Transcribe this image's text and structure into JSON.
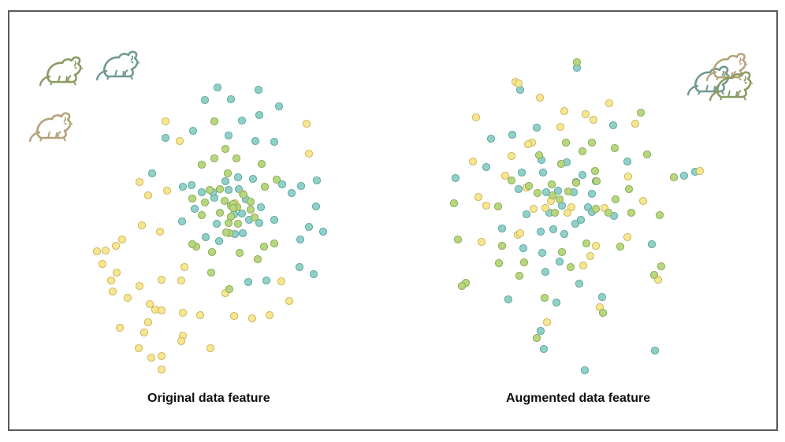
{
  "colors": {
    "teal": "#8fd0c8",
    "yellow": "#f7e690",
    "green": "#b7d77e",
    "teal_stroke": "#5aa39a",
    "yellow_stroke": "#c9b25a",
    "green_stroke": "#88a653",
    "mouse_green": "#8b9b63",
    "mouse_teal": "#6f9a91",
    "mouse_tan": "#b3a27a"
  },
  "icons": [
    "mouse-icon-green",
    "mouse-icon-teal",
    "mouse-icon-tan"
  ],
  "chart_data": [
    {
      "type": "scatter",
      "title": "Original data feature",
      "grid": false,
      "series": [
        {
          "color": "teal",
          "points": [
            [
              276,
              111
            ],
            [
              328,
              114
            ],
            [
              260,
              127
            ],
            [
              293,
              126
            ],
            [
              354,
              135
            ],
            [
              307,
              153
            ],
            [
              329,
              146
            ],
            [
              245,
              166
            ],
            [
              290,
              172
            ],
            [
              324,
              179
            ],
            [
              348,
              180
            ],
            [
              210,
              175
            ],
            [
              193,
              220
            ],
            [
              243,
              235
            ],
            [
              302,
              225
            ],
            [
              321,
              227
            ],
            [
              358,
              234
            ],
            [
              382,
              236
            ],
            [
              402,
              229
            ],
            [
              286,
              230
            ],
            [
              256,
              244
            ],
            [
              272,
              251
            ],
            [
              312,
              253
            ],
            [
              331,
              263
            ],
            [
              370,
              245
            ],
            [
              401,
              262
            ],
            [
              232,
              237
            ],
            [
              290,
              241
            ],
            [
              303,
              240
            ],
            [
              270,
              244
            ],
            [
              247,
              265
            ],
            [
              231,
              281
            ],
            [
              275,
              284
            ],
            [
              297,
              272
            ],
            [
              316,
              279
            ],
            [
              329,
              283
            ],
            [
              348,
              279
            ],
            [
              410,
              294
            ],
            [
              392,
              288
            ],
            [
              381,
              304
            ],
            [
              308,
              296
            ],
            [
              298,
              297
            ],
            [
              278,
              306
            ],
            [
              261,
              301
            ],
            [
              315,
              358
            ],
            [
              380,
              339
            ],
            [
              398,
              348
            ],
            [
              338,
              356
            ],
            [
              307,
              271
            ]
          ]
        },
        {
          "color": "yellow",
          "points": [
            [
              210,
              154
            ],
            [
              228,
              179
            ],
            [
              389,
              157
            ],
            [
              392,
              195
            ],
            [
              177,
              231
            ],
            [
              212,
              242
            ],
            [
              188,
              248
            ],
            [
              180,
              286
            ],
            [
              203,
              294
            ],
            [
              155,
              304
            ],
            [
              147,
              312
            ],
            [
              123,
              319
            ],
            [
              134,
              318
            ],
            [
              130,
              335
            ],
            [
              148,
              346
            ],
            [
              141,
              356
            ],
            [
              143,
              370
            ],
            [
              177,
              363
            ],
            [
              162,
              378
            ],
            [
              205,
              355
            ],
            [
              230,
              356
            ],
            [
              234,
              339
            ],
            [
              190,
              386
            ],
            [
              197,
              393
            ],
            [
              205,
              394
            ],
            [
              232,
              397
            ],
            [
              254,
              400
            ],
            [
              297,
              401
            ],
            [
              320,
              404
            ],
            [
              342,
              400
            ],
            [
              357,
              357
            ],
            [
              367,
              382
            ],
            [
              188,
              409
            ],
            [
              152,
              416
            ],
            [
              232,
              426
            ],
            [
              183,
              422
            ],
            [
              230,
              433
            ],
            [
              176,
              442
            ],
            [
              192,
              454
            ],
            [
              205,
              452
            ],
            [
              205,
              469
            ],
            [
              267,
              442
            ],
            [
              298,
              258
            ],
            [
              286,
              372
            ],
            [
              308,
              246
            ]
          ]
        },
        {
          "color": "green",
          "points": [
            [
              272,
              154
            ],
            [
              256,
              209
            ],
            [
              272,
              201
            ],
            [
              300,
              201
            ],
            [
              286,
              189
            ],
            [
              332,
              208
            ],
            [
              351,
              228
            ],
            [
              336,
              237
            ],
            [
              309,
              247
            ],
            [
              279,
              240
            ],
            [
              293,
              261
            ],
            [
              301,
              263
            ],
            [
              318,
              256
            ],
            [
              285,
              255
            ],
            [
              260,
              257
            ],
            [
              244,
              252
            ],
            [
              266,
              241
            ],
            [
              289,
              220
            ],
            [
              256,
              273
            ],
            [
              279,
              270
            ],
            [
              296,
              259
            ],
            [
              323,
              276
            ],
            [
              302,
              284
            ],
            [
              291,
              296
            ],
            [
              304,
              321
            ],
            [
              269,
              320
            ],
            [
              327,
              329
            ],
            [
              335,
              313
            ],
            [
              348,
              309
            ],
            [
              318,
              266
            ],
            [
              296,
              264
            ],
            [
              287,
              295
            ],
            [
              291,
              367
            ],
            [
              268,
              346
            ],
            [
              249,
              313
            ],
            [
              244,
              310
            ],
            [
              293,
              275
            ],
            [
              290,
              283
            ]
          ]
        }
      ]
    },
    {
      "type": "scatter",
      "title": "Augmented data feature",
      "grid": false,
      "series": [
        {
          "color": "teal",
          "points": [
            [
              732,
              86
            ],
            [
              660,
              114
            ],
            [
              681,
              162
            ],
            [
              623,
              176
            ],
            [
              650,
              171
            ],
            [
              578,
              226
            ],
            [
              617,
              212
            ],
            [
              662,
              219
            ],
            [
              687,
              203
            ],
            [
              689,
              219
            ],
            [
              693,
              244
            ],
            [
              708,
              242
            ],
            [
              719,
              206
            ],
            [
              728,
              244
            ],
            [
              731,
              231
            ],
            [
              739,
              222
            ],
            [
              746,
              263
            ],
            [
              756,
              230
            ],
            [
              751,
              246
            ],
            [
              779,
              274
            ],
            [
              796,
              205
            ],
            [
              778,
              159
            ],
            [
              668,
              272
            ],
            [
              697,
              270
            ],
            [
              713,
              261
            ],
            [
              637,
              290
            ],
            [
              686,
              294
            ],
            [
              702,
              291
            ],
            [
              716,
              297
            ],
            [
              730,
              284
            ],
            [
              737,
              279
            ],
            [
              751,
              269
            ],
            [
              664,
              315
            ],
            [
              688,
              321
            ],
            [
              710,
              332
            ],
            [
              692,
              345
            ],
            [
              735,
              360
            ],
            [
              827,
              310
            ],
            [
              690,
              443
            ],
            [
              686,
              420
            ],
            [
              706,
              384
            ],
            [
              764,
              377
            ],
            [
              645,
              380
            ],
            [
              831,
              445
            ],
            [
              742,
              470
            ],
            [
              868,
              223
            ],
            [
              882,
              218
            ],
            [
              658,
              240
            ]
          ]
        },
        {
          "color": "yellow",
          "points": [
            [
              654,
              104
            ],
            [
              658,
              106
            ],
            [
              685,
              124
            ],
            [
              716,
              141
            ],
            [
              773,
              131
            ],
            [
              743,
              145
            ],
            [
              604,
              149
            ],
            [
              711,
              161
            ],
            [
              753,
              152
            ],
            [
              806,
              157
            ],
            [
              675,
              181
            ],
            [
              600,
              205
            ],
            [
              649,
              198
            ],
            [
              670,
              183
            ],
            [
              641,
              223
            ],
            [
              668,
              238
            ],
            [
              607,
              250
            ],
            [
              617,
              261
            ],
            [
              692,
              264
            ],
            [
              699,
              255
            ],
            [
              725,
              263
            ],
            [
              677,
              265
            ],
            [
              657,
              298
            ],
            [
              767,
              264
            ],
            [
              797,
              224
            ],
            [
              816,
              255
            ],
            [
              756,
              312
            ],
            [
              796,
              301
            ],
            [
              611,
              307
            ],
            [
              740,
              337
            ],
            [
              749,
              325
            ],
            [
              694,
              409
            ],
            [
              761,
              390
            ],
            [
              835,
              355
            ],
            [
              888,
              217
            ],
            [
              660,
              296
            ],
            [
              720,
              270
            ]
          ]
        },
        {
          "color": "green",
          "points": [
            [
              732,
              79
            ],
            [
              813,
              143
            ],
            [
              718,
              181
            ],
            [
              751,
              181
            ],
            [
              684,
              197
            ],
            [
              780,
              188
            ],
            [
              821,
              196
            ],
            [
              712,
              208
            ],
            [
              739,
              192
            ],
            [
              755,
              217
            ],
            [
              731,
              232
            ],
            [
              757,
              230
            ],
            [
              721,
              243
            ],
            [
              682,
              245
            ],
            [
              671,
              236
            ],
            [
              649,
              229
            ],
            [
              576,
              258
            ],
            [
              632,
              262
            ],
            [
              581,
              304
            ],
            [
              700,
              234
            ],
            [
              701,
              248
            ],
            [
              756,
              265
            ],
            [
              704,
              270
            ],
            [
              781,
              253
            ],
            [
              798,
              240
            ],
            [
              772,
              270
            ],
            [
              801,
              270
            ],
            [
              837,
              273
            ],
            [
              855,
              225
            ],
            [
              744,
              309
            ],
            [
              787,
              313
            ],
            [
              713,
              320
            ],
            [
              637,
              312
            ],
            [
              633,
              334
            ],
            [
              665,
              333
            ],
            [
              659,
              350
            ],
            [
              724,
              339
            ],
            [
              839,
              338
            ],
            [
              830,
              349
            ],
            [
              691,
              378
            ],
            [
              765,
              397
            ],
            [
              681,
              429
            ],
            [
              591,
              359
            ],
            [
              586,
              363
            ],
            [
              710,
              253
            ]
          ]
        }
      ]
    }
  ]
}
